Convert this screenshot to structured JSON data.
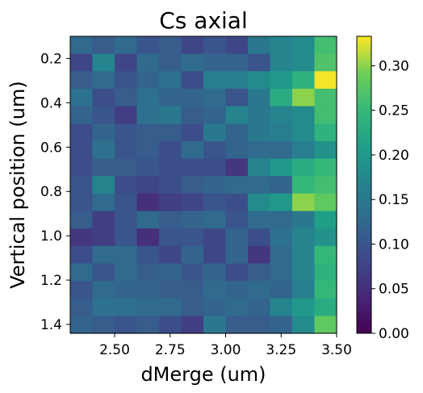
{
  "chart_data": {
    "type": "heatmap",
    "title": "Cs axial",
    "xlabel": "dMerge (um)",
    "ylabel": "Vertical position (um)",
    "xlim": [
      2.3,
      3.5
    ],
    "ylim": [
      1.44,
      0.1
    ],
    "x_ticks": [
      "2.50",
      "2.75",
      "3.00",
      "3.25",
      "3.50"
    ],
    "y_ticks": [
      "0.2",
      "0.4",
      "0.6",
      "0.8",
      "1.0",
      "1.2",
      "1.4"
    ],
    "colormap": "viridis",
    "vmin": 0,
    "vmax": 0.333,
    "colorbar_ticks": [
      "0.00",
      "0.05",
      "0.10",
      "0.15",
      "0.20",
      "0.25",
      "0.30"
    ],
    "grid": false,
    "x": [
      2.35,
      2.45,
      2.55,
      2.65,
      2.75,
      2.85,
      2.95,
      3.05,
      3.15,
      3.25,
      3.35,
      3.45
    ],
    "y": [
      0.13,
      0.2,
      0.28,
      0.36,
      0.44,
      0.52,
      0.59,
      0.67,
      0.75,
      0.83,
      0.91,
      0.98,
      1.06,
      1.14,
      1.22,
      1.3,
      1.37
    ],
    "values": [
      [
        0.13,
        0.11,
        0.13,
        0.1,
        0.11,
        0.08,
        0.1,
        0.08,
        0.15,
        0.17,
        0.18,
        0.26
      ],
      [
        0.08,
        0.17,
        0.08,
        0.13,
        0.11,
        0.13,
        0.12,
        0.12,
        0.1,
        0.17,
        0.18,
        0.27
      ],
      [
        0.11,
        0.13,
        0.1,
        0.12,
        0.14,
        0.09,
        0.16,
        0.16,
        0.18,
        0.2,
        0.24,
        0.33
      ],
      [
        0.14,
        0.09,
        0.11,
        0.14,
        0.12,
        0.12,
        0.13,
        0.1,
        0.15,
        0.23,
        0.3,
        0.26
      ],
      [
        0.12,
        0.1,
        0.07,
        0.14,
        0.15,
        0.11,
        0.12,
        0.17,
        0.15,
        0.17,
        0.18,
        0.26
      ],
      [
        0.09,
        0.12,
        0.1,
        0.11,
        0.11,
        0.09,
        0.15,
        0.12,
        0.15,
        0.16,
        0.18,
        0.24
      ],
      [
        0.09,
        0.14,
        0.1,
        0.11,
        0.09,
        0.13,
        0.1,
        0.12,
        0.13,
        0.13,
        0.16,
        0.19
      ],
      [
        0.09,
        0.11,
        0.11,
        0.1,
        0.09,
        0.09,
        0.09,
        0.06,
        0.17,
        0.2,
        0.23,
        0.25
      ],
      [
        0.1,
        0.17,
        0.09,
        0.08,
        0.09,
        0.11,
        0.12,
        0.13,
        0.13,
        0.12,
        0.25,
        0.26
      ],
      [
        0.1,
        0.13,
        0.1,
        0.05,
        0.07,
        0.08,
        0.1,
        0.09,
        0.18,
        0.2,
        0.3,
        0.28
      ],
      [
        0.11,
        0.07,
        0.1,
        0.13,
        0.11,
        0.12,
        0.13,
        0.1,
        0.13,
        0.13,
        0.15,
        0.21
      ],
      [
        0.06,
        0.07,
        0.1,
        0.05,
        0.1,
        0.1,
        0.08,
        0.12,
        0.09,
        0.14,
        0.17,
        0.19
      ],
      [
        0.09,
        0.13,
        0.13,
        0.1,
        0.08,
        0.12,
        0.08,
        0.12,
        0.06,
        0.13,
        0.17,
        0.25
      ],
      [
        0.13,
        0.1,
        0.13,
        0.11,
        0.12,
        0.1,
        0.12,
        0.09,
        0.11,
        0.13,
        0.17,
        0.24
      ],
      [
        0.1,
        0.13,
        0.12,
        0.12,
        0.11,
        0.11,
        0.13,
        0.12,
        0.13,
        0.12,
        0.16,
        0.25
      ],
      [
        0.11,
        0.14,
        0.14,
        0.13,
        0.13,
        0.11,
        0.12,
        0.13,
        0.12,
        0.17,
        0.2,
        0.23
      ],
      [
        0.12,
        0.11,
        0.1,
        0.11,
        0.09,
        0.07,
        0.15,
        0.11,
        0.11,
        0.12,
        0.18,
        0.28
      ]
    ]
  }
}
